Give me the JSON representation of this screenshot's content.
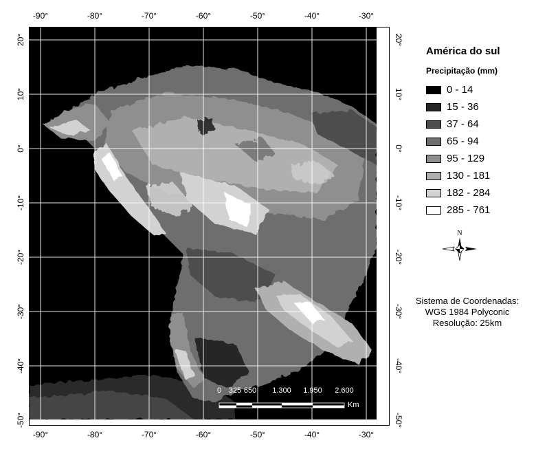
{
  "map": {
    "legend_title": "América do sul",
    "legend_subtitle": "Precipitação (mm)",
    "classes": [
      {
        "label": "0 - 14",
        "color": "#000000"
      },
      {
        "label": "15 - 36",
        "color": "#262626"
      },
      {
        "label": "37 - 64",
        "color": "#4d4d4d"
      },
      {
        "label": "65 - 94",
        "color": "#6e6e6e"
      },
      {
        "label": "95 - 129",
        "color": "#8f8f8f"
      },
      {
        "label": "130 - 181",
        "color": "#b0b0b0"
      },
      {
        "label": "182 - 284",
        "color": "#d2d2d2"
      },
      {
        "label": "285 - 761",
        "color": "#ffffff"
      }
    ],
    "longitude_ticks": [
      "-90°",
      "-80°",
      "-70°",
      "-60°",
      "-50°",
      "-40°",
      "-30°"
    ],
    "latitude_ticks": [
      "20°",
      "10°",
      "0°",
      "-10°",
      "-20°",
      "-30°",
      "-40°",
      "-50°"
    ],
    "north_label": "N",
    "info_lines": [
      "Sistema de Coordenadas:",
      "WGS 1984 Polyconic",
      "Resolução: 25km"
    ],
    "scale": {
      "labels": [
        "0",
        "325",
        "650",
        "1.300",
        "1.950",
        "2.600"
      ],
      "unit": "Km"
    }
  }
}
